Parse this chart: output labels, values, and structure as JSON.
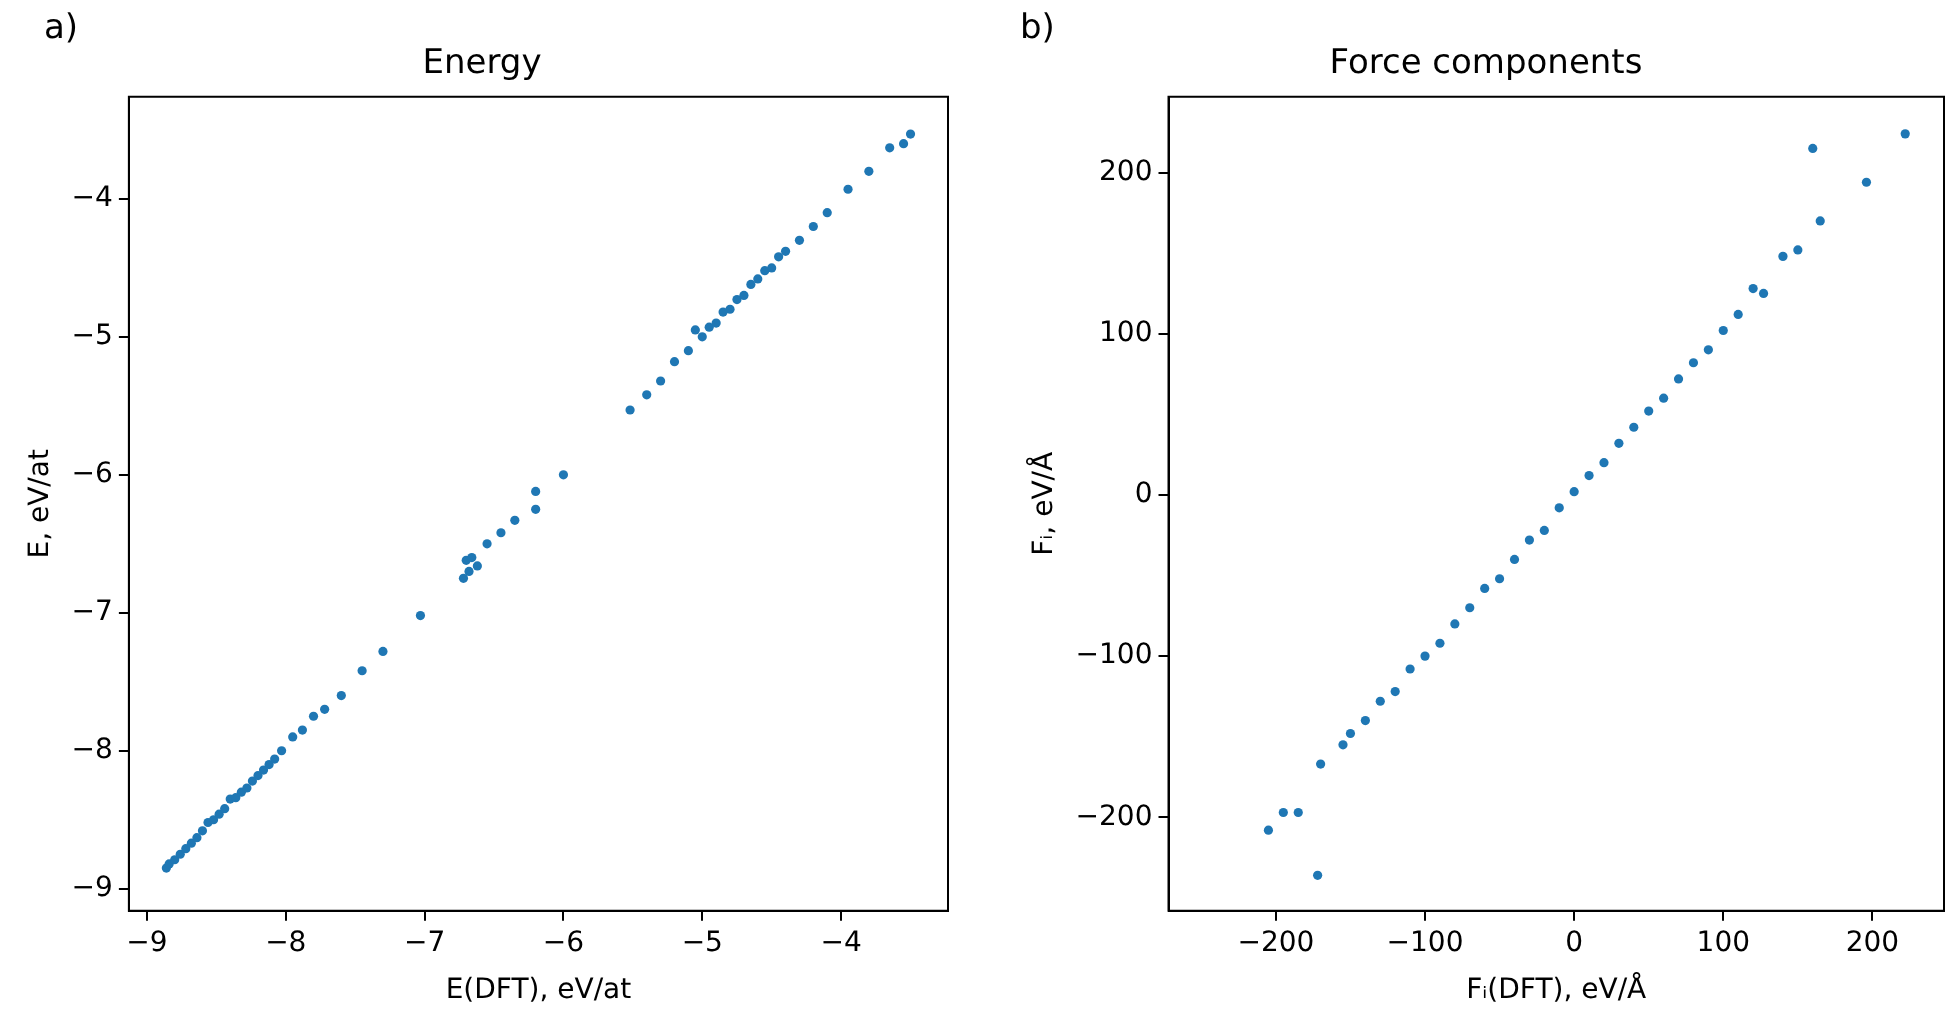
{
  "chart_data": [
    {
      "type": "scatter",
      "title": "Energy",
      "xlabel": "E(DFT), eV/at",
      "ylabel": "E, eV/at",
      "annotations": [
        "a)"
      ],
      "color": "#1f77b4",
      "marker": "circle",
      "grid": false,
      "legend": false,
      "x": [
        -8.86,
        -8.84,
        -8.8,
        -8.76,
        -8.72,
        -8.68,
        -8.64,
        -8.6,
        -8.56,
        -8.52,
        -8.48,
        -8.44,
        -8.4,
        -8.36,
        -8.32,
        -8.28,
        -8.24,
        -8.2,
        -8.16,
        -8.12,
        -8.08,
        -8.03,
        -7.95,
        -7.88,
        -7.8,
        -7.72,
        -7.6,
        -7.45,
        -7.3,
        -7.03,
        -6.72,
        -6.7,
        -6.68,
        -6.66,
        -6.62,
        -6.55,
        -6.45,
        -6.35,
        -6.2,
        -6.2,
        -6.0,
        -5.52,
        -5.4,
        -5.3,
        -5.2,
        -5.1,
        -5.05,
        -5.0,
        -4.95,
        -4.9,
        -4.85,
        -4.8,
        -4.75,
        -4.7,
        -4.65,
        -4.6,
        -4.55,
        -4.5,
        -4.45,
        -4.4,
        -4.3,
        -4.2,
        -4.1,
        -3.95,
        -3.8,
        -3.65,
        -3.55,
        -3.5
      ],
      "values": [
        -8.85,
        -8.82,
        -8.79,
        -8.75,
        -8.71,
        -8.67,
        -8.63,
        -8.58,
        -8.52,
        -8.5,
        -8.46,
        -8.42,
        -8.35,
        -8.34,
        -8.3,
        -8.27,
        -8.22,
        -8.18,
        -8.14,
        -8.1,
        -8.06,
        -8.0,
        -7.9,
        -7.85,
        -7.75,
        -7.7,
        -7.6,
        -7.42,
        -7.28,
        -7.02,
        -6.75,
        -6.62,
        -6.7,
        -6.6,
        -6.66,
        -6.5,
        -6.42,
        -6.33,
        -6.12,
        -6.25,
        -6.0,
        -5.53,
        -5.42,
        -5.32,
        -5.18,
        -5.1,
        -4.95,
        -5.0,
        -4.93,
        -4.9,
        -4.82,
        -4.8,
        -4.73,
        -4.7,
        -4.62,
        -4.58,
        -4.52,
        -4.5,
        -4.42,
        -4.38,
        -4.3,
        -4.2,
        -4.1,
        -3.93,
        -3.8,
        -3.63,
        -3.6,
        -3.53
      ],
      "xlim": [
        -9.13,
        -3.23
      ],
      "ylim": [
        -9.16,
        -3.26
      ],
      "xticks": [
        -9,
        -8,
        -7,
        -6,
        -5,
        -4
      ],
      "yticks": [
        -9,
        -8,
        -7,
        -6,
        -5,
        -4
      ]
    },
    {
      "type": "scatter",
      "title": "Force components",
      "xlabel": "Fᵢ(DFT), eV/Å",
      "ylabel": "Fᵢ, eV/Å",
      "annotations": [
        "b)"
      ],
      "color": "#1f77b4",
      "marker": "circle",
      "grid": false,
      "legend": false,
      "x": [
        -205,
        -195,
        -185,
        -172,
        -170,
        -155,
        -150,
        -140,
        -130,
        -120,
        -110,
        -100,
        -90,
        -80,
        -70,
        -60,
        -50,
        -40,
        -30,
        -20,
        -10,
        0,
        10,
        20,
        30,
        40,
        50,
        60,
        70,
        80,
        90,
        100,
        110,
        120,
        127,
        140,
        150,
        160,
        165,
        196,
        222
      ],
      "values": [
        -208,
        -197,
        -197,
        -236,
        -167,
        -155,
        -148,
        -140,
        -128,
        -122,
        -108,
        -100,
        -92,
        -80,
        -70,
        -58,
        -52,
        -40,
        -28,
        -22,
        -8,
        2,
        12,
        20,
        32,
        42,
        52,
        60,
        72,
        82,
        90,
        102,
        112,
        128,
        125,
        148,
        152,
        215,
        170,
        194,
        224
      ],
      "xlim": [
        -272,
        248
      ],
      "ylim": [
        -258,
        247
      ],
      "xticks": [
        -200,
        -100,
        0,
        100,
        200
      ],
      "yticks": [
        -200,
        -100,
        0,
        100,
        200
      ]
    }
  ]
}
